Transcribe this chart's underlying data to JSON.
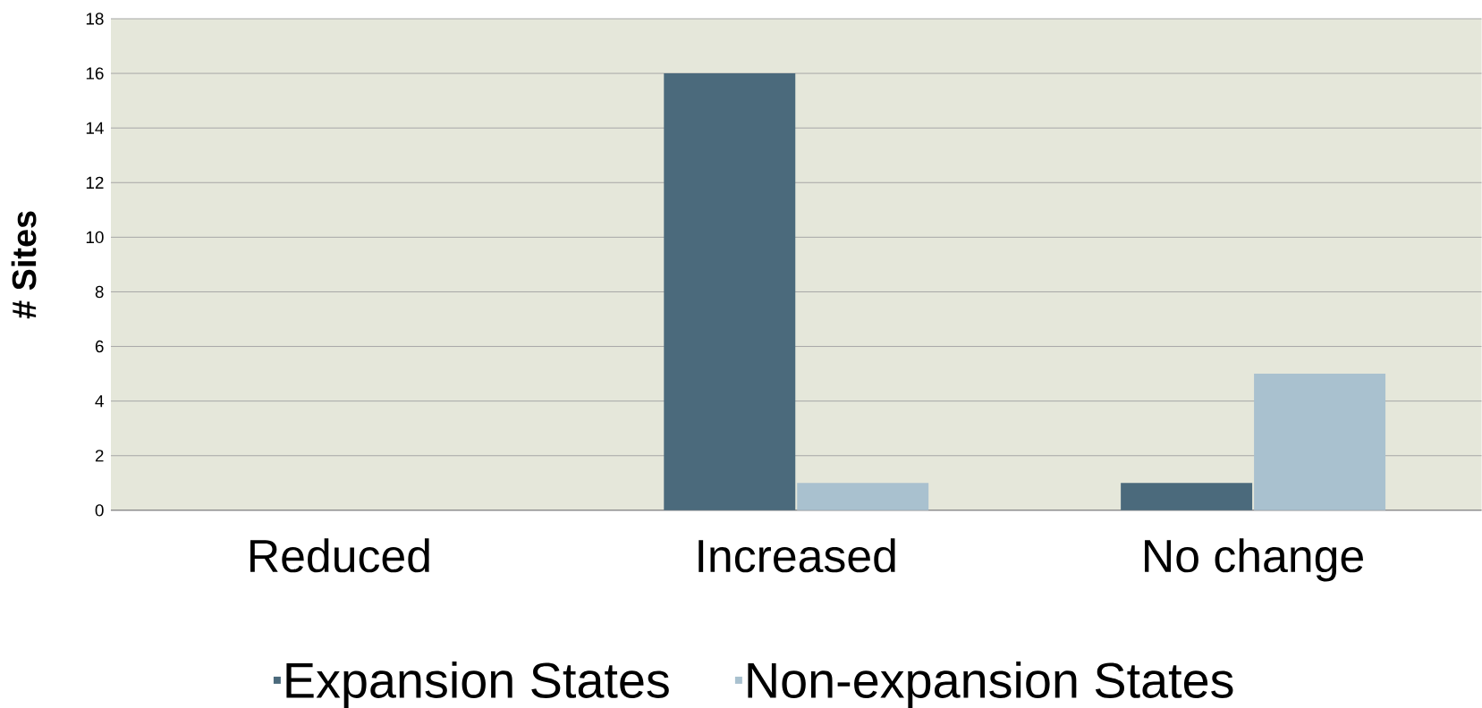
{
  "chart_data": {
    "type": "bar",
    "ylabel": "# Sites",
    "categories": [
      "Reduced",
      "Increased",
      "No change"
    ],
    "series": [
      {
        "name": "Expansion States",
        "color": "#4b6a7c",
        "values": [
          0,
          16,
          1
        ]
      },
      {
        "name": "Non-expansion States",
        "color": "#a9c1cf",
        "values": [
          0,
          1,
          5
        ]
      }
    ],
    "ylim": [
      0,
      18
    ],
    "yticks": [
      0,
      2,
      4,
      6,
      8,
      10,
      12,
      14,
      16,
      18
    ],
    "grid": "y",
    "legend": "bottom"
  }
}
